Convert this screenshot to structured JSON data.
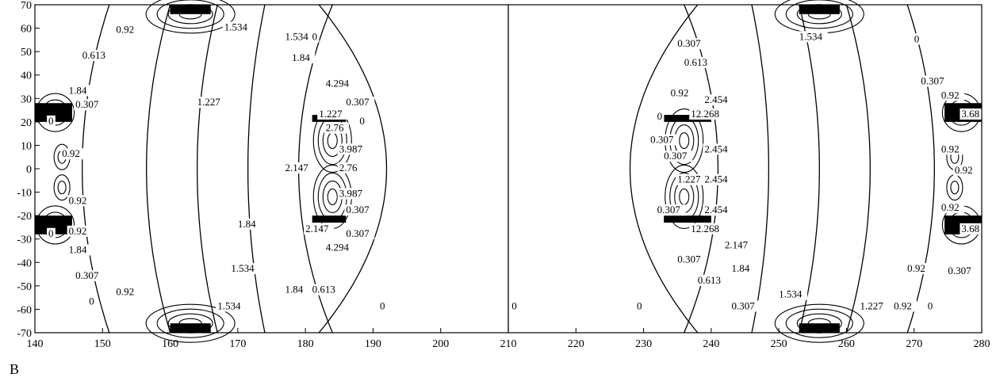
{
  "chart_data": {
    "type": "contour",
    "title": "",
    "xlabel": "",
    "ylabel": "",
    "xlim": [
      140,
      280
    ],
    "ylim": [
      -70,
      70
    ],
    "x_ticks": [
      140,
      150,
      160,
      170,
      180,
      190,
      200,
      210,
      220,
      230,
      240,
      250,
      260,
      270,
      280
    ],
    "y_ticks": [
      70,
      60,
      50,
      40,
      30,
      20,
      10,
      0,
      -10,
      -20,
      -30,
      -40,
      -50,
      -60,
      -70
    ],
    "grid": false,
    "conductors": [
      {
        "x0": 160,
        "x1": 166,
        "y0": 66,
        "y1": 70
      },
      {
        "x0": 160,
        "x1": 166,
        "y0": -70,
        "y1": -66
      },
      {
        "x0": 253,
        "x1": 259,
        "y0": 66,
        "y1": 70
      },
      {
        "x0": 253,
        "x1": 259,
        "y0": -70,
        "y1": -66
      },
      {
        "x0": 140,
        "x1": 145.5,
        "y0": 20,
        "y1": 28
      },
      {
        "x0": 140,
        "x1": 145.5,
        "y0": -28,
        "y1": -20
      },
      {
        "x0": 274.5,
        "x1": 280,
        "y0": 20,
        "y1": 28
      },
      {
        "x0": 274.5,
        "x1": 280,
        "y0": -28,
        "y1": -20
      },
      {
        "x0": 181,
        "x1": 186,
        "y0": 20,
        "y1": 23
      },
      {
        "x0": 181,
        "x1": 186,
        "y0": -23,
        "y1": -20
      },
      {
        "x0": 233,
        "x1": 240,
        "y0": 20,
        "y1": 23
      },
      {
        "x0": 233,
        "x1": 240,
        "y0": -23,
        "y1": -20
      }
    ],
    "contour_labels": [
      {
        "text": "0.92",
        "x": 152,
        "y": 58
      },
      {
        "text": "1.534",
        "x": 168,
        "y": 59
      },
      {
        "text": "1.534",
        "x": 177,
        "y": 55
      },
      {
        "text": "0",
        "x": 181,
        "y": 55
      },
      {
        "text": "0.613",
        "x": 147,
        "y": 47
      },
      {
        "text": "1.84",
        "x": 178,
        "y": 46
      },
      {
        "text": "1.84",
        "x": 145,
        "y": 32
      },
      {
        "text": "4.294",
        "x": 183,
        "y": 35
      },
      {
        "text": "1.227",
        "x": 164,
        "y": 27
      },
      {
        "text": "0.307",
        "x": 146,
        "y": 26
      },
      {
        "text": "0.307",
        "x": 186,
        "y": 27
      },
      {
        "text": "1.227",
        "x": 182,
        "y": 22
      },
      {
        "text": "0",
        "x": 142,
        "y": 19
      },
      {
        "text": "0",
        "x": 188,
        "y": 19
      },
      {
        "text": "2.76",
        "x": 183,
        "y": 16
      },
      {
        "text": "3.987",
        "x": 185,
        "y": 7
      },
      {
        "text": "0.92",
        "x": 144,
        "y": 5
      },
      {
        "text": "2.147",
        "x": 177,
        "y": -1
      },
      {
        "text": "2.76",
        "x": 185,
        "y": -1
      },
      {
        "text": "3.987",
        "x": 185,
        "y": -12
      },
      {
        "text": "0.92",
        "x": 145,
        "y": -15
      },
      {
        "text": "0.307",
        "x": 186,
        "y": -19
      },
      {
        "text": "1.84",
        "x": 170,
        "y": -25
      },
      {
        "text": "0.92",
        "x": 145,
        "y": -28
      },
      {
        "text": "0",
        "x": 142,
        "y": -29
      },
      {
        "text": "2.147",
        "x": 180,
        "y": -27
      },
      {
        "text": "0.307",
        "x": 186,
        "y": -29
      },
      {
        "text": "1.84",
        "x": 145,
        "y": -36
      },
      {
        "text": "4.294",
        "x": 183,
        "y": -35
      },
      {
        "text": "1.534",
        "x": 169,
        "y": -44
      },
      {
        "text": "0.307",
        "x": 146,
        "y": -47
      },
      {
        "text": "0.92",
        "x": 152,
        "y": -54
      },
      {
        "text": "1.84",
        "x": 177,
        "y": -53
      },
      {
        "text": "0.613",
        "x": 181,
        "y": -53
      },
      {
        "text": "0",
        "x": 148,
        "y": -58
      },
      {
        "text": "1.534",
        "x": 167,
        "y": -60
      },
      {
        "text": "0",
        "x": 191,
        "y": -60
      },
      {
        "text": "0",
        "x": 210.5,
        "y": -60
      },
      {
        "text": "0.307",
        "x": 235,
        "y": 52
      },
      {
        "text": "1.534",
        "x": 253,
        "y": 55
      },
      {
        "text": "0",
        "x": 270,
        "y": 54
      },
      {
        "text": "0.613",
        "x": 236,
        "y": 44
      },
      {
        "text": "0.307",
        "x": 271,
        "y": 36
      },
      {
        "text": "0.92",
        "x": 234,
        "y": 31
      },
      {
        "text": "2.454",
        "x": 239,
        "y": 28
      },
      {
        "text": "0.92",
        "x": 274,
        "y": 30
      },
      {
        "text": "0",
        "x": 232,
        "y": 21
      },
      {
        "text": "12.268",
        "x": 237,
        "y": 22
      },
      {
        "text": "3.68",
        "x": 277,
        "y": 22
      },
      {
        "text": "0.307",
        "x": 231,
        "y": 11
      },
      {
        "text": "2.454",
        "x": 239,
        "y": 7
      },
      {
        "text": "0.307",
        "x": 233,
        "y": 4
      },
      {
        "text": "0.92",
        "x": 274,
        "y": 7
      },
      {
        "text": "0.92",
        "x": 276,
        "y": -2
      },
      {
        "text": "1.227",
        "x": 235,
        "y": -6
      },
      {
        "text": "2.454",
        "x": 239,
        "y": -6
      },
      {
        "text": "0.307",
        "x": 232,
        "y": -19
      },
      {
        "text": "2.454",
        "x": 239,
        "y": -19
      },
      {
        "text": "0.92",
        "x": 274,
        "y": -18
      },
      {
        "text": "12.268",
        "x": 237,
        "y": -27
      },
      {
        "text": "3.68",
        "x": 277,
        "y": -27
      },
      {
        "text": "2.147",
        "x": 242,
        "y": -34
      },
      {
        "text": "0.307",
        "x": 235,
        "y": -40
      },
      {
        "text": "1.84",
        "x": 243,
        "y": -44
      },
      {
        "text": "0.92",
        "x": 269,
        "y": -44
      },
      {
        "text": "0.307",
        "x": 275,
        "y": -45
      },
      {
        "text": "0.613",
        "x": 238,
        "y": -49
      },
      {
        "text": "1.534",
        "x": 250,
        "y": -55
      },
      {
        "text": "0",
        "x": 229,
        "y": -60
      },
      {
        "text": "0.307",
        "x": 243,
        "y": -60
      },
      {
        "text": "1.227",
        "x": 262,
        "y": -60
      },
      {
        "text": "0.92",
        "x": 267,
        "y": -60
      },
      {
        "text": "0",
        "x": 272,
        "y": -60
      }
    ]
  },
  "panel_label": "B"
}
